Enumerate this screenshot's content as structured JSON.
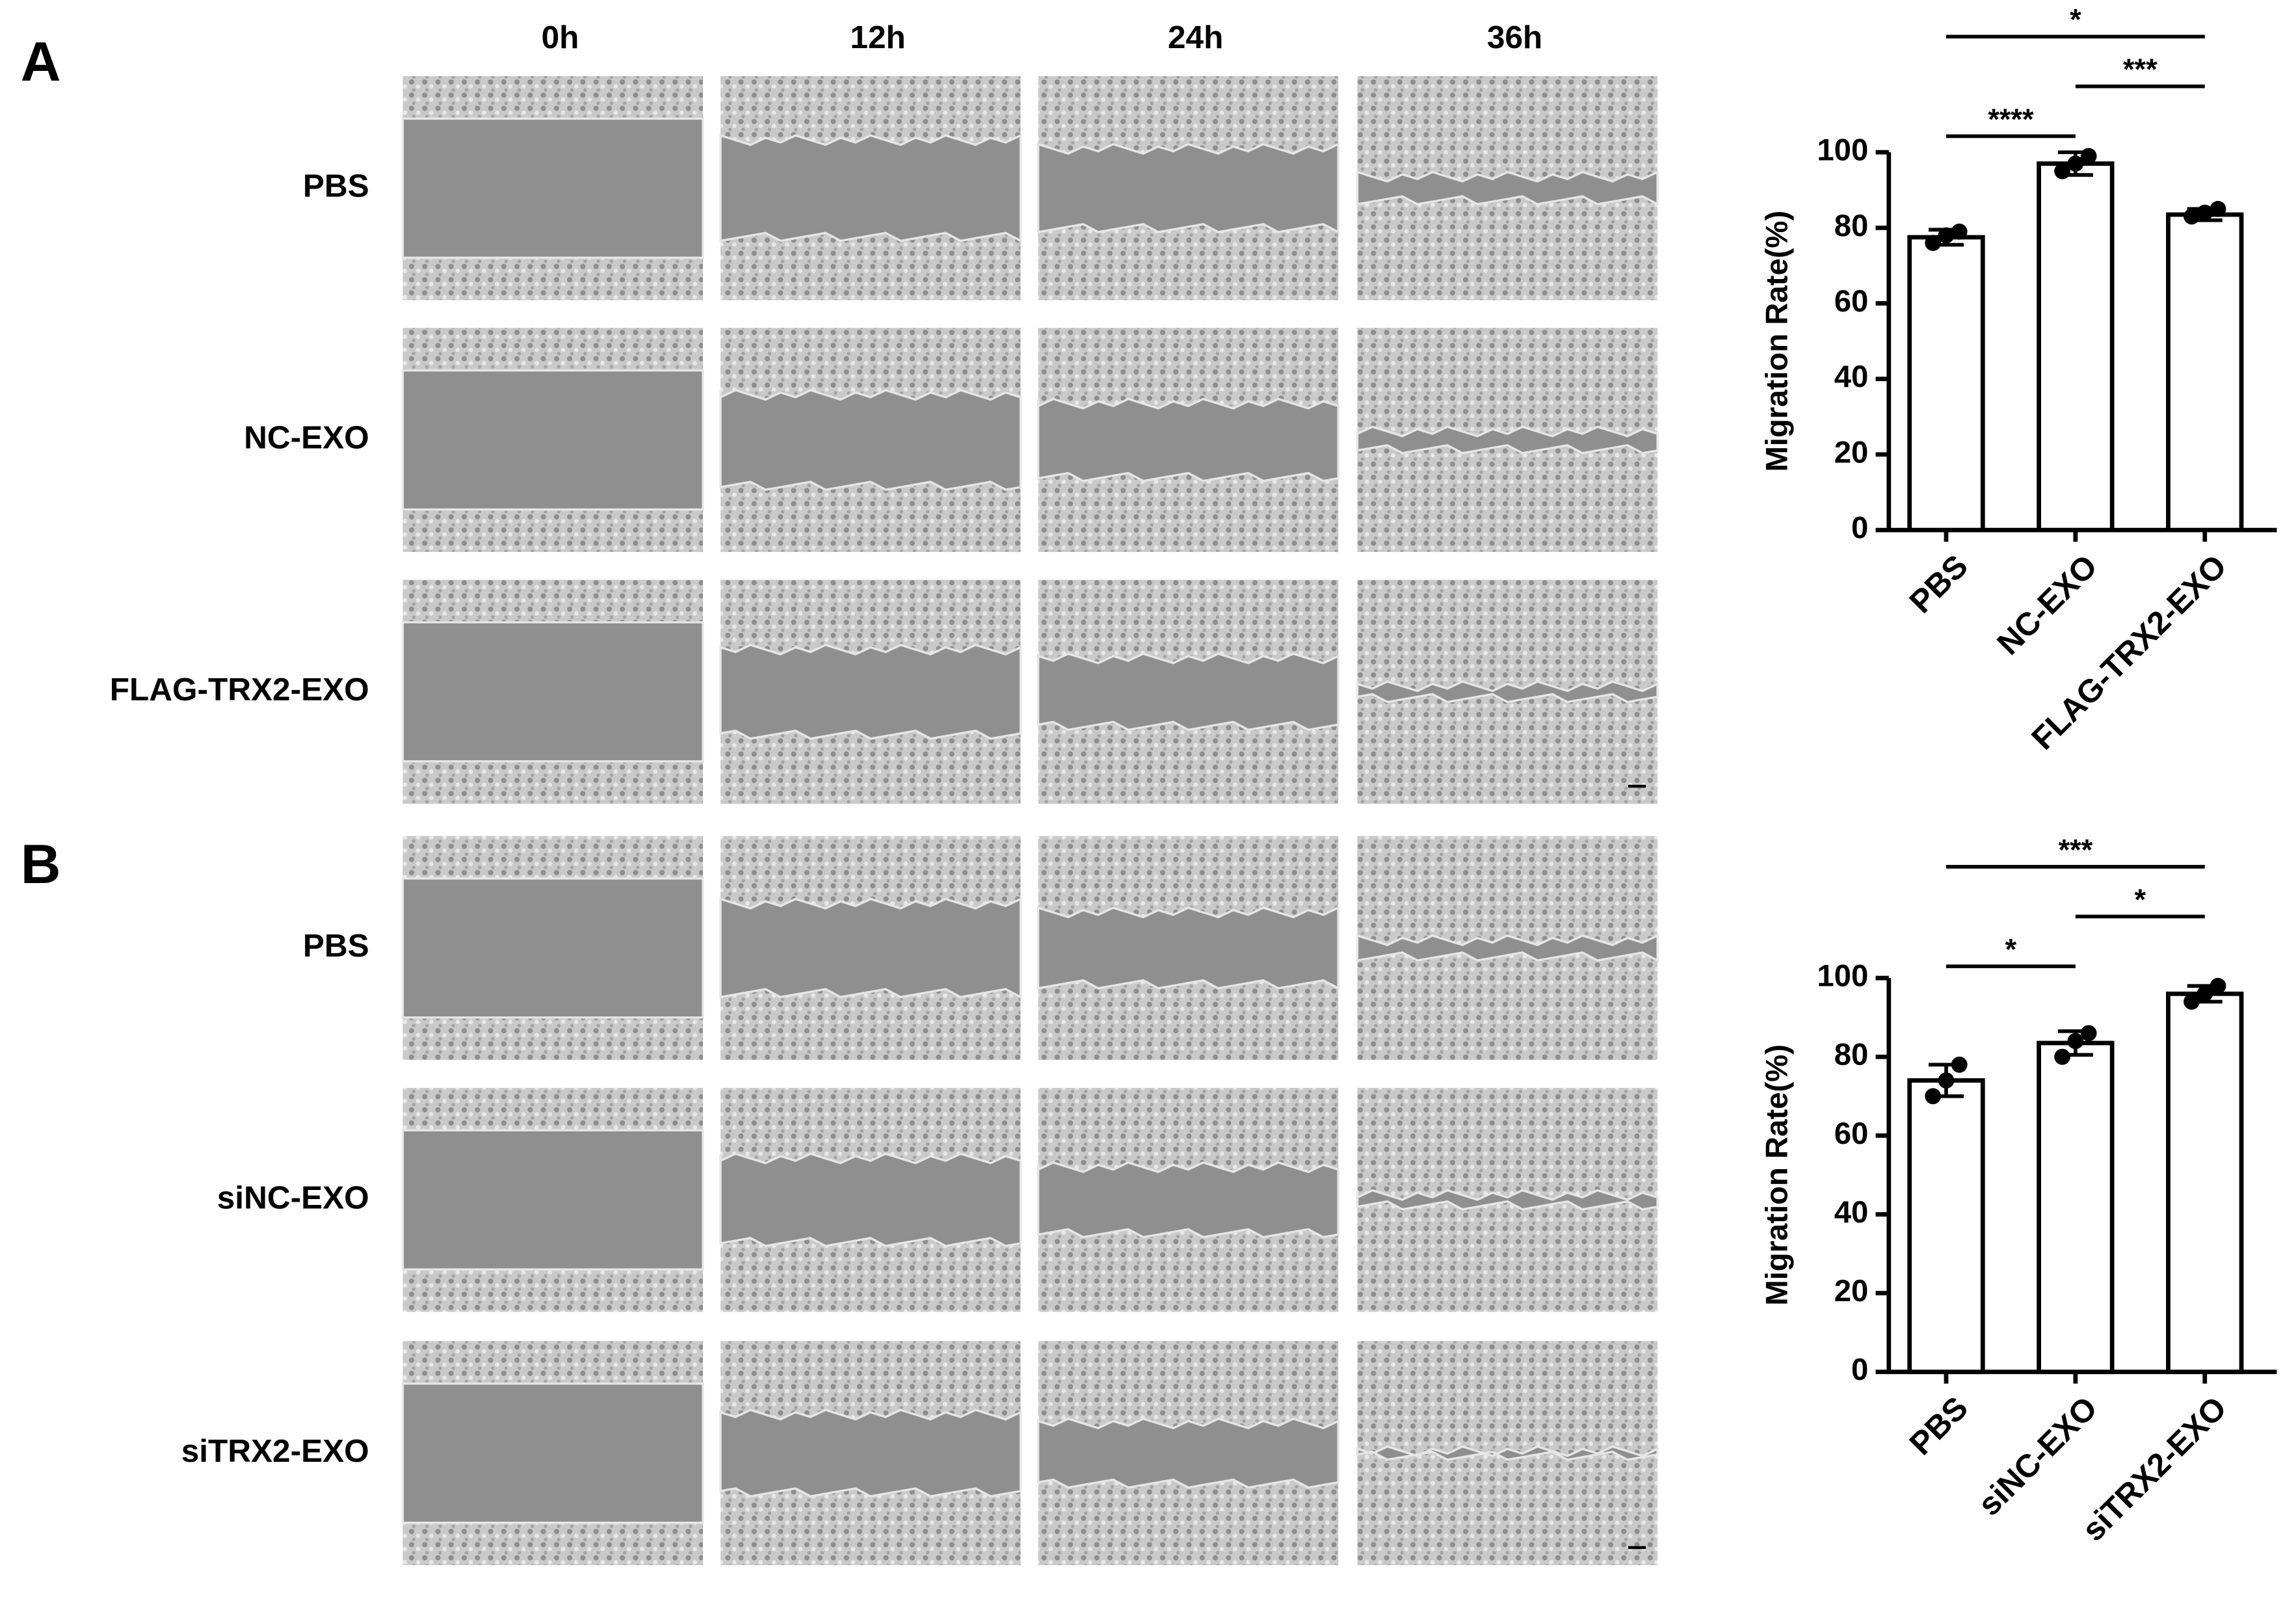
{
  "columns": [
    "0h",
    "12h",
    "24h",
    "36h"
  ],
  "panels": [
    {
      "label": "A",
      "rows": [
        "PBS",
        "NC-EXO",
        "FLAG-TRX2-EXO"
      ]
    },
    {
      "label": "B",
      "rows": [
        "PBS",
        "siNC-EXO",
        "siTRX2-EXO"
      ]
    }
  ],
  "chart_data": [
    {
      "type": "bar",
      "ylabel": "Migration Rate(%)",
      "categories": [
        "PBS",
        "NC-EXO",
        "FLAG-TRX2-EXO"
      ],
      "values": [
        77.5,
        97,
        83.5
      ],
      "errors": [
        2,
        3,
        1.5
      ],
      "points": [
        [
          76,
          78,
          79
        ],
        [
          95,
          97,
          99
        ],
        [
          83,
          84,
          85
        ]
      ],
      "ylim": [
        0,
        100
      ],
      "yticks": [
        0,
        20,
        40,
        60,
        80,
        100
      ],
      "annotations": [
        {
          "text": "****",
          "between": [
            "PBS",
            "NC-EXO"
          ]
        },
        {
          "text": "***",
          "between": [
            "NC-EXO",
            "FLAG-TRX2-EXO"
          ]
        },
        {
          "text": "*",
          "between": [
            "PBS",
            "FLAG-TRX2-EXO"
          ]
        }
      ]
    },
    {
      "type": "bar",
      "ylabel": "Migration Rate(%)",
      "categories": [
        "PBS",
        "siNC-EXO",
        "siTRX2-EXO"
      ],
      "values": [
        74,
        83.5,
        96
      ],
      "errors": [
        4,
        3,
        2
      ],
      "points": [
        [
          70,
          74,
          78
        ],
        [
          80,
          84,
          86
        ],
        [
          94,
          96,
          98
        ]
      ],
      "ylim": [
        0,
        100
      ],
      "yticks": [
        0,
        20,
        40,
        60,
        80,
        100
      ],
      "annotations": [
        {
          "text": "*",
          "between": [
            "PBS",
            "siNC-EXO"
          ]
        },
        {
          "text": "*",
          "between": [
            "siNC-EXO",
            "siTRX2-EXO"
          ]
        },
        {
          "text": "***",
          "between": [
            "PBS",
            "siTRX2-EXO"
          ]
        }
      ]
    }
  ]
}
